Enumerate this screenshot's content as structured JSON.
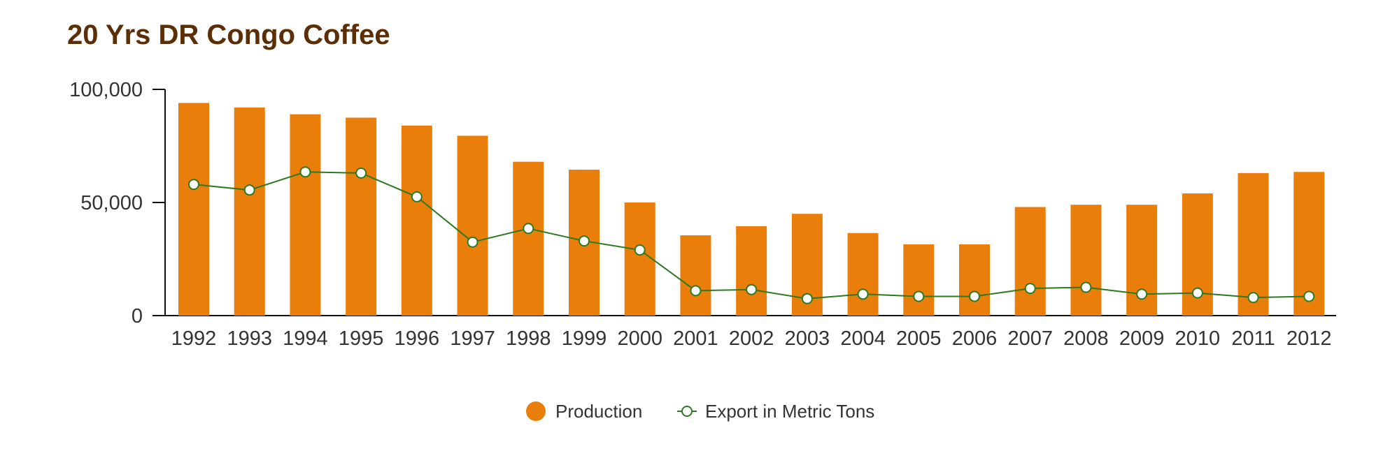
{
  "chart_data": {
    "type": "bar",
    "title": "20 Yrs DR Congo Coffee",
    "xlabel": "",
    "ylabel": "",
    "ylim": [
      0,
      100000
    ],
    "yticks": [
      "0",
      "50,000",
      "100,000"
    ],
    "ytick_values": [
      0,
      50000,
      100000
    ],
    "grid": false,
    "legend_position": "bottom-center",
    "categories": [
      "1992",
      "1993",
      "1994",
      "1995",
      "1996",
      "1997",
      "1998",
      "1999",
      "2000",
      "2001",
      "2002",
      "2003",
      "2004",
      "2005",
      "2006",
      "2007",
      "2008",
      "2009",
      "2010",
      "2011",
      "2012"
    ],
    "series": [
      {
        "name": "Production",
        "kind": "bar",
        "color": "#ea7e0a",
        "values": [
          94000,
          92000,
          89000,
          87500,
          84000,
          79500,
          68000,
          64500,
          50000,
          35500,
          39500,
          45000,
          36500,
          31500,
          31500,
          48000,
          49000,
          49000,
          54000,
          63000,
          63500
        ]
      },
      {
        "name": "Export in Metric Tons",
        "kind": "line",
        "color": "#2b7a1f",
        "values": [
          58000,
          55500,
          63500,
          63000,
          52500,
          32500,
          38500,
          33000,
          29000,
          11000,
          11500,
          7500,
          9500,
          8500,
          8500,
          12000,
          12500,
          9500,
          10000,
          8000,
          8500
        ]
      }
    ]
  }
}
